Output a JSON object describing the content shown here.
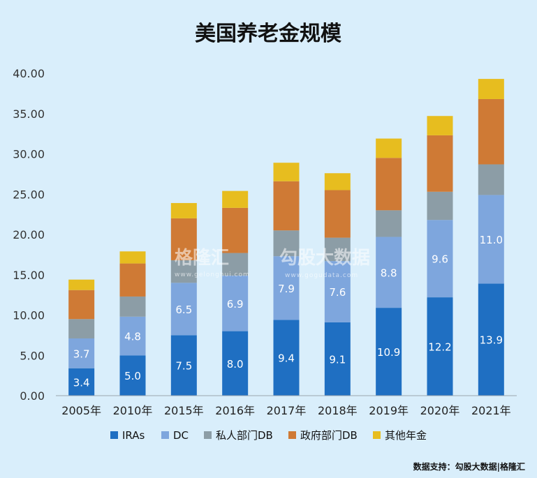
{
  "chart_data": {
    "type": "bar",
    "stacked": true,
    "title": "美国养老金规模",
    "xlabel": "",
    "ylabel": "",
    "ylim": [
      0,
      40
    ],
    "yticks": [
      "0.00",
      "5.00",
      "10.00",
      "15.00",
      "20.00",
      "25.00",
      "30.00",
      "35.00",
      "40.00"
    ],
    "categories": [
      "2005年",
      "2010年",
      "2015年",
      "2016年",
      "2017年",
      "2018年",
      "2019年",
      "2020年",
      "2021年"
    ],
    "series": [
      {
        "name": "IRAs",
        "color": "#1f6fc2",
        "values": [
          3.4,
          5.0,
          7.5,
          8.0,
          9.4,
          9.1,
          10.9,
          12.2,
          13.9
        ],
        "labels": [
          "3.4",
          "5.0",
          "7.5",
          "8.0",
          "9.4",
          "9.1",
          "10.9",
          "12.2",
          "13.9"
        ]
      },
      {
        "name": "DC",
        "color": "#7ea6dd",
        "values": [
          3.7,
          4.8,
          6.5,
          6.9,
          7.9,
          7.6,
          8.8,
          9.6,
          11.0
        ],
        "labels": [
          "3.7",
          "4.8",
          "6.5",
          "6.9",
          "7.9",
          "7.6",
          "8.8",
          "9.6",
          "11.0"
        ]
      },
      {
        "name": "私人部门DB",
        "color": "#8c9da6",
        "values": [
          2.4,
          2.5,
          2.8,
          2.8,
          3.2,
          2.9,
          3.3,
          3.5,
          3.8
        ]
      },
      {
        "name": "政府部门DB",
        "color": "#cf7a35",
        "values": [
          3.6,
          4.1,
          5.2,
          5.6,
          6.1,
          5.9,
          6.5,
          7.0,
          8.1
        ]
      },
      {
        "name": "其他年金",
        "color": "#e7bd1f",
        "values": [
          1.3,
          1.5,
          1.9,
          2.1,
          2.3,
          2.1,
          2.4,
          2.4,
          2.5
        ]
      }
    ],
    "grid": false,
    "legend_position": "bottom"
  },
  "watermark": {
    "brand1": "格隆汇",
    "brand1_sub": "www.gelonghui.com",
    "brand2": "勾股大数据",
    "brand2_sub": "www.gogudata.com"
  },
  "source": "数据支持：勾股大数据|格隆汇"
}
